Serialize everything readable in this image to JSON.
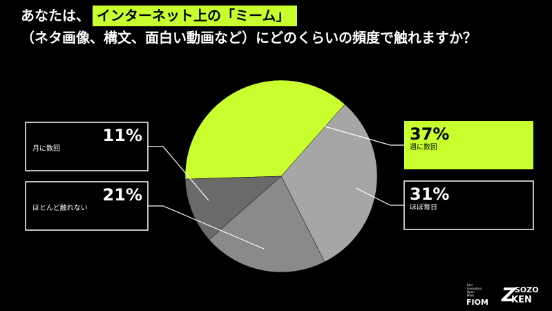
{
  "chart_data": {
    "type": "pie",
    "title_prefix": "あなたは、",
    "title_highlight": "インターネット上の「ミーム」",
    "title_line2": "（ネタ画像、構文、面白い動画など）にどのくらいの頻度で触れますか？",
    "categories": [
      "週に数回",
      "ほぼ毎日",
      "ほとんど触れない",
      "月に数回"
    ],
    "values": [
      37,
      31,
      21,
      11
    ],
    "value_labels": [
      "37%",
      "31%",
      "21%",
      "11%"
    ],
    "colors": [
      "#c9ff2f",
      "#a6a6a6",
      "#8a8a8a",
      "#6a6a6a"
    ]
  },
  "logos": {
    "fiom": {
      "tagline": [
        "Fast",
        "Innovation",
        "Open",
        "Mind"
      ],
      "name": "FIOM"
    },
    "sozoken": {
      "mark": "Z",
      "top": "SOZO",
      "bottom": "KEN"
    }
  }
}
